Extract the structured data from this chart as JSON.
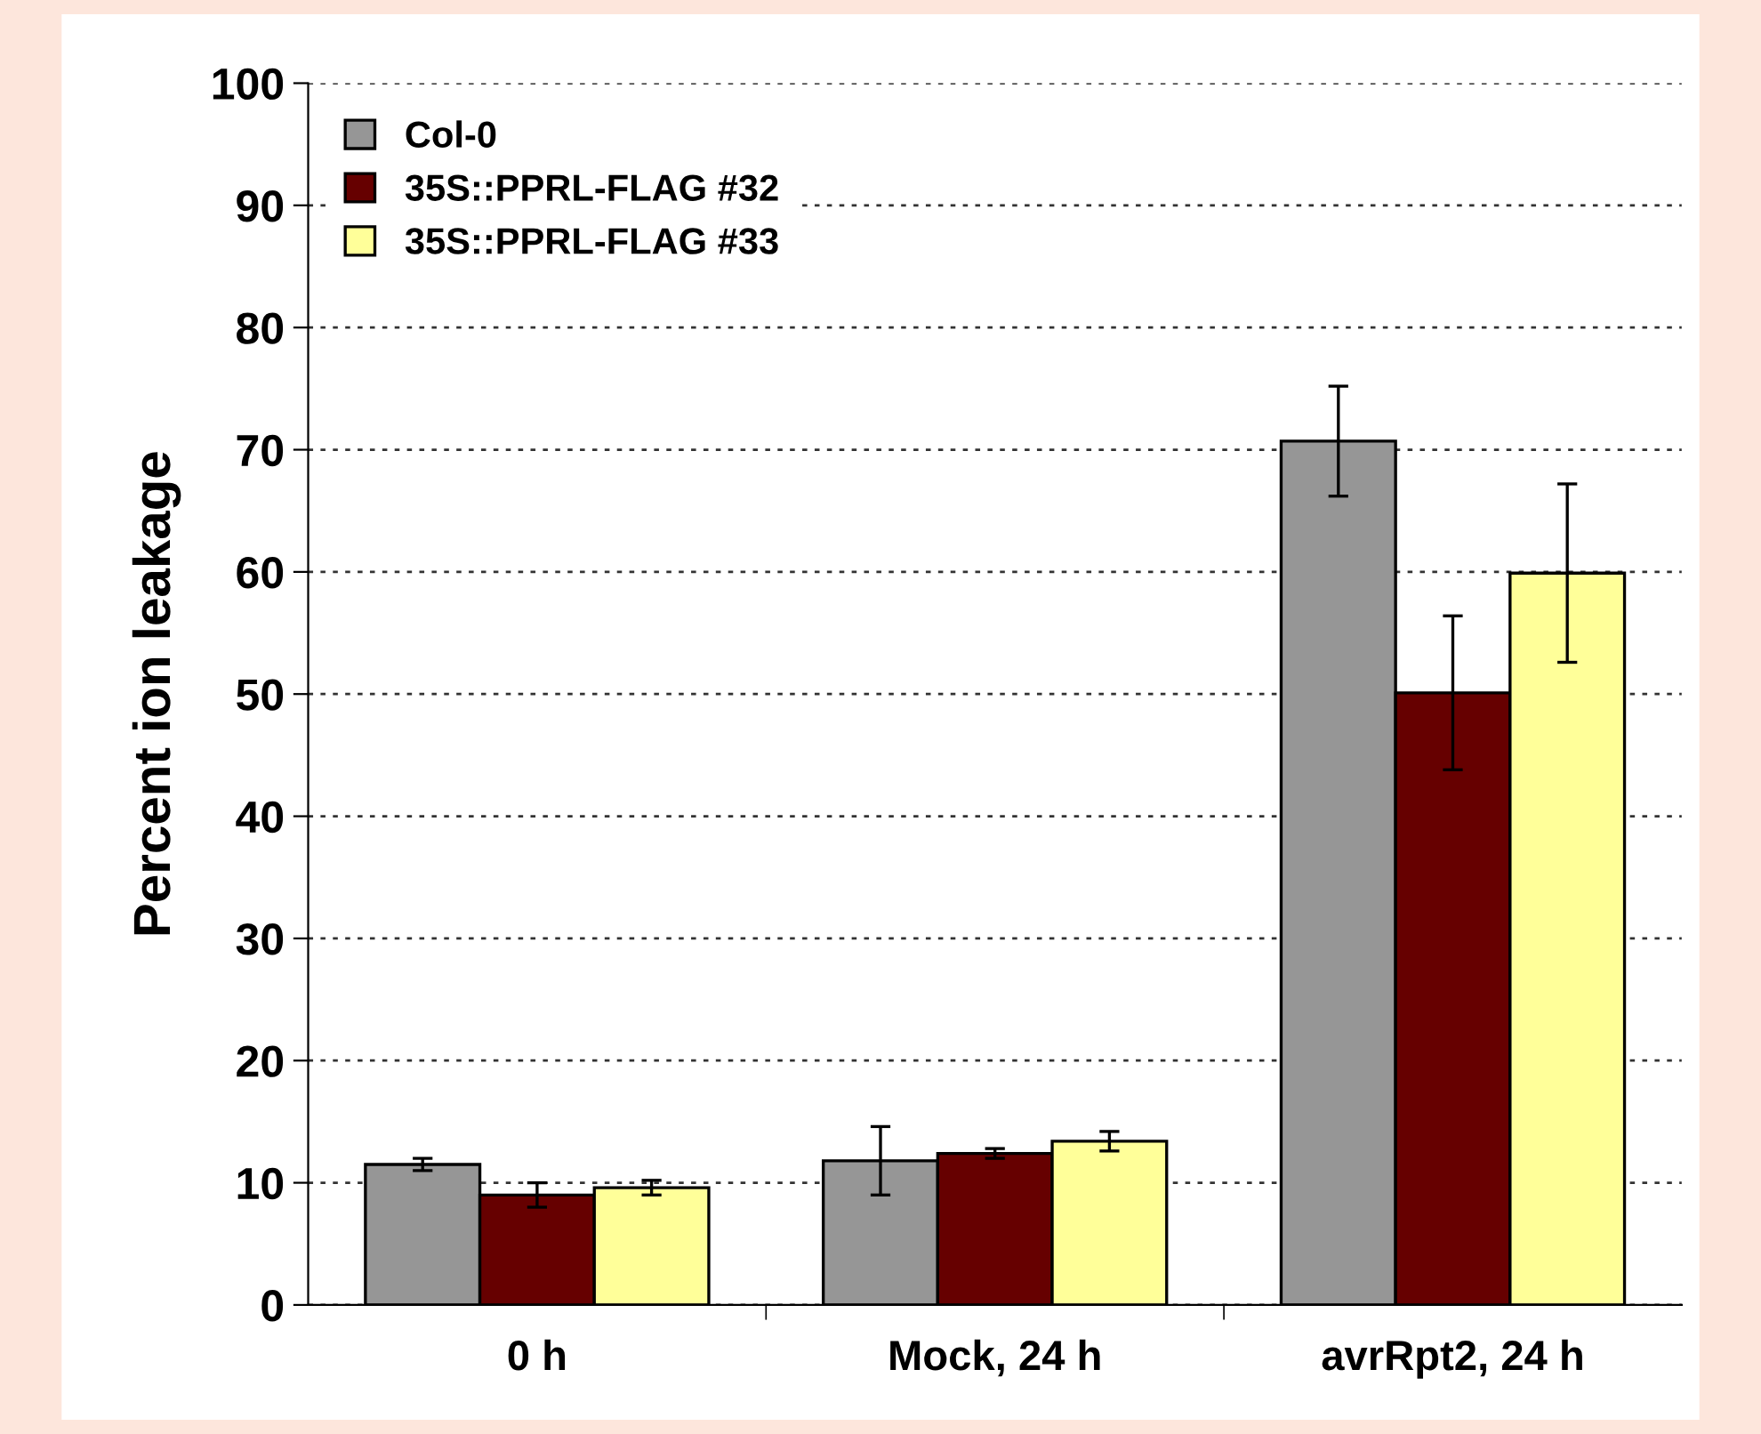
{
  "chart_data": {
    "type": "bar",
    "ylabel": "Percent ion leakage",
    "categories": [
      "0 h",
      "Mock, 24 h",
      "avrRpt2, 24 h"
    ],
    "series": [
      {
        "name": "Col-0",
        "color": "#969696",
        "values": [
          11.5,
          11.8,
          70.7
        ],
        "errors": [
          0.5,
          2.8,
          4.5
        ]
      },
      {
        "name": "35S::PPRL-FLAG #32",
        "color": "#660000",
        "values": [
          9.0,
          12.4,
          50.1
        ],
        "errors": [
          1.0,
          0.4,
          6.3
        ]
      },
      {
        "name": "35S::PPRL-FLAG #33",
        "color": "#ffff99",
        "values": [
          9.6,
          13.4,
          59.9
        ],
        "errors": [
          0.6,
          0.8,
          7.3
        ]
      }
    ],
    "ylim": [
      0,
      100
    ],
    "yticks": [
      0,
      10,
      20,
      30,
      40,
      50,
      60,
      70,
      80,
      90,
      100
    ],
    "grid": "y",
    "legend": "top left"
  }
}
